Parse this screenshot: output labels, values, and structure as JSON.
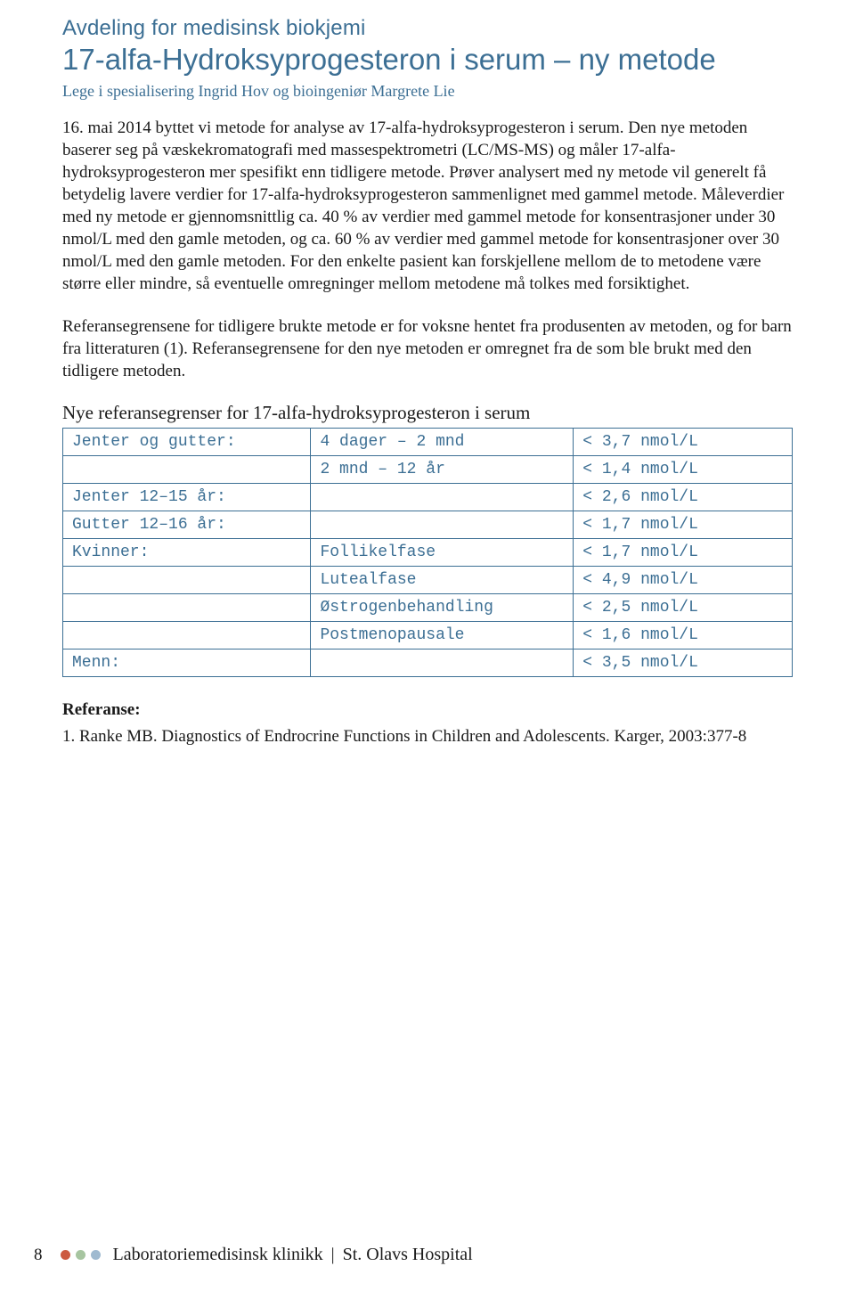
{
  "colors": {
    "accent": "#3c6f94",
    "text": "#1a1a1a",
    "dot1": "#cc5a40",
    "dot2": "#a7c5a0",
    "dot3": "#9fbad0",
    "table_border": "#3c6f94",
    "background": "#ffffff"
  },
  "department": "Avdeling for medisinsk biokjemi",
  "title": "17-alfa-Hydroksyprogesteron i serum – ny metode",
  "authors": "Lege i spesialisering Ingrid Hov og bioingeniør Margrete Lie",
  "paragraph1": "16. mai 2014 byttet vi metode for analyse av 17-alfa-hydroksyprogesteron i serum. Den nye metoden baserer seg på væskekromatografi med massespektrometri (LC/MS-MS) og måler 17-alfa-hydroksyprogesteron mer spesifikt enn tidligere metode. Prøver analysert med ny metode vil generelt få betydelig lavere verdier for 17-alfa-hydroksyprogesteron sammenlignet med gammel metode. Måleverdier med ny metode er gjennomsnittlig ca. 40 % av verdier med gammel metode for konsentrasjoner under 30 nmol/L med den gamle metoden, og ca. 60 % av verdier med gammel metode for konsentrasjoner over 30 nmol/L med den gamle metoden. For den enkelte pasient kan forskjellene mellom de to metodene være større eller mindre, så eventuelle omregninger mellom metodene må tolkes med forsiktighet.",
  "paragraph2": "Referansegrensene for tidligere brukte metode er for voksne hentet fra produsenten av metoden, og for barn fra litteraturen (1). Referansegrensene for den nye metoden er omregnet fra de som ble brukt med den tidligere metoden.",
  "table_heading": "Nye referansegrenser for 17-alfa-hydroksyprogesteron i serum",
  "table": {
    "border_color": "#3c6f94",
    "cell_text_color": "#3c6f94",
    "font_family": "Courier New",
    "font_size_pt": 13,
    "column_widths_pct": [
      34,
      36,
      30
    ],
    "rows": [
      {
        "c1": "Jenter og gutter:",
        "c2": "4 dager – 2 mnd",
        "c3": "< 3,7 nmol/L"
      },
      {
        "c1": "",
        "c2": "2 mnd – 12 år",
        "c3": "< 1,4 nmol/L"
      },
      {
        "c1": "Jenter 12–15 år:",
        "c2": "",
        "c3": "< 2,6 nmol/L"
      },
      {
        "c1": "Gutter 12–16 år:",
        "c2": "",
        "c3": "< 1,7 nmol/L"
      },
      {
        "c1": "Kvinner:",
        "c2": "Follikelfase",
        "c3": "< 1,7 nmol/L"
      },
      {
        "c1": "",
        "c2": "Lutealfase",
        "c3": "< 4,9 nmol/L"
      },
      {
        "c1": "",
        "c2": "Østrogenbehandling",
        "c3": "< 2,5 nmol/L"
      },
      {
        "c1": "",
        "c2": "Postmenopausale",
        "c3": "< 1,6 nmol/L"
      },
      {
        "c1": "Menn:",
        "c2": "",
        "c3": "< 3,5 nmol/L"
      }
    ]
  },
  "references_heading": "Referanse:",
  "references": [
    "1. Ranke MB. Diagnostics of Endrocrine Functions in Children and Adolescents. Karger, 2003:377-8"
  ],
  "footer": {
    "page_number": "8",
    "text_left": "Laboratoriemedisinsk klinikk",
    "text_right": "St. Olavs Hospital",
    "separator": "|"
  }
}
